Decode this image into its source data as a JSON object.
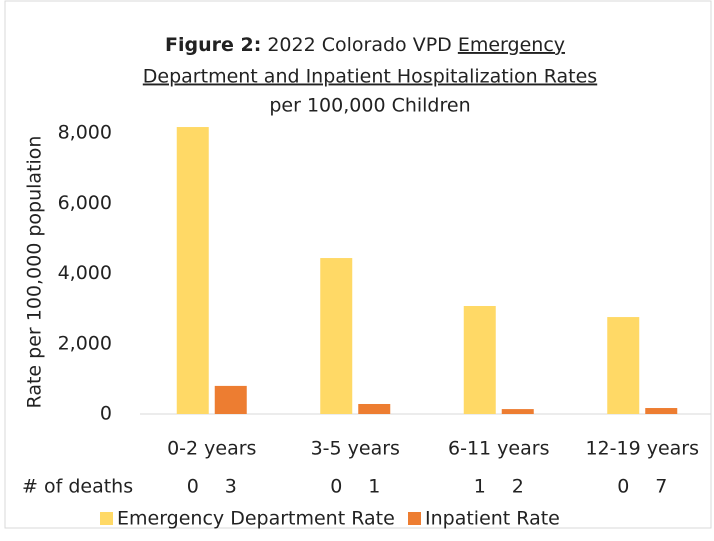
{
  "chart_data": {
    "type": "bar",
    "title": [
      "Figure 2:",
      "2022 Colorado VPD",
      "Emergency",
      "Department and Inpatient Hospitalization Rates",
      "per 100,000 Children"
    ],
    "y_label": "Rate per 100,000 population",
    "categories": [
      "0-2 years",
      "3-5 years",
      "6-11 years",
      "12-19 years"
    ],
    "deaths_label": "# of deaths",
    "series": [
      {
        "name": "Emergency Department Rate",
        "color": "#ffd966",
        "values": [
          8170,
          4440,
          3075,
          2760
        ],
        "deaths": [
          0,
          0,
          1,
          0
        ]
      },
      {
        "name": "Inpatient Rate",
        "color": "#ed7d31",
        "values": [
          800,
          285,
          140,
          170
        ],
        "deaths": [
          3,
          1,
          2,
          7
        ]
      }
    ],
    "ylim": [
      0,
      8000
    ],
    "yticks": [
      0,
      {
        "value": 2000,
        "label": "2,000"
      },
      {
        "value": 4000,
        "label": "4,000"
      },
      {
        "value": 6000,
        "label": "6,000"
      },
      {
        "value": 8000,
        "label": "8,000"
      }
    ],
    "grid": false,
    "legend": "bottom"
  }
}
